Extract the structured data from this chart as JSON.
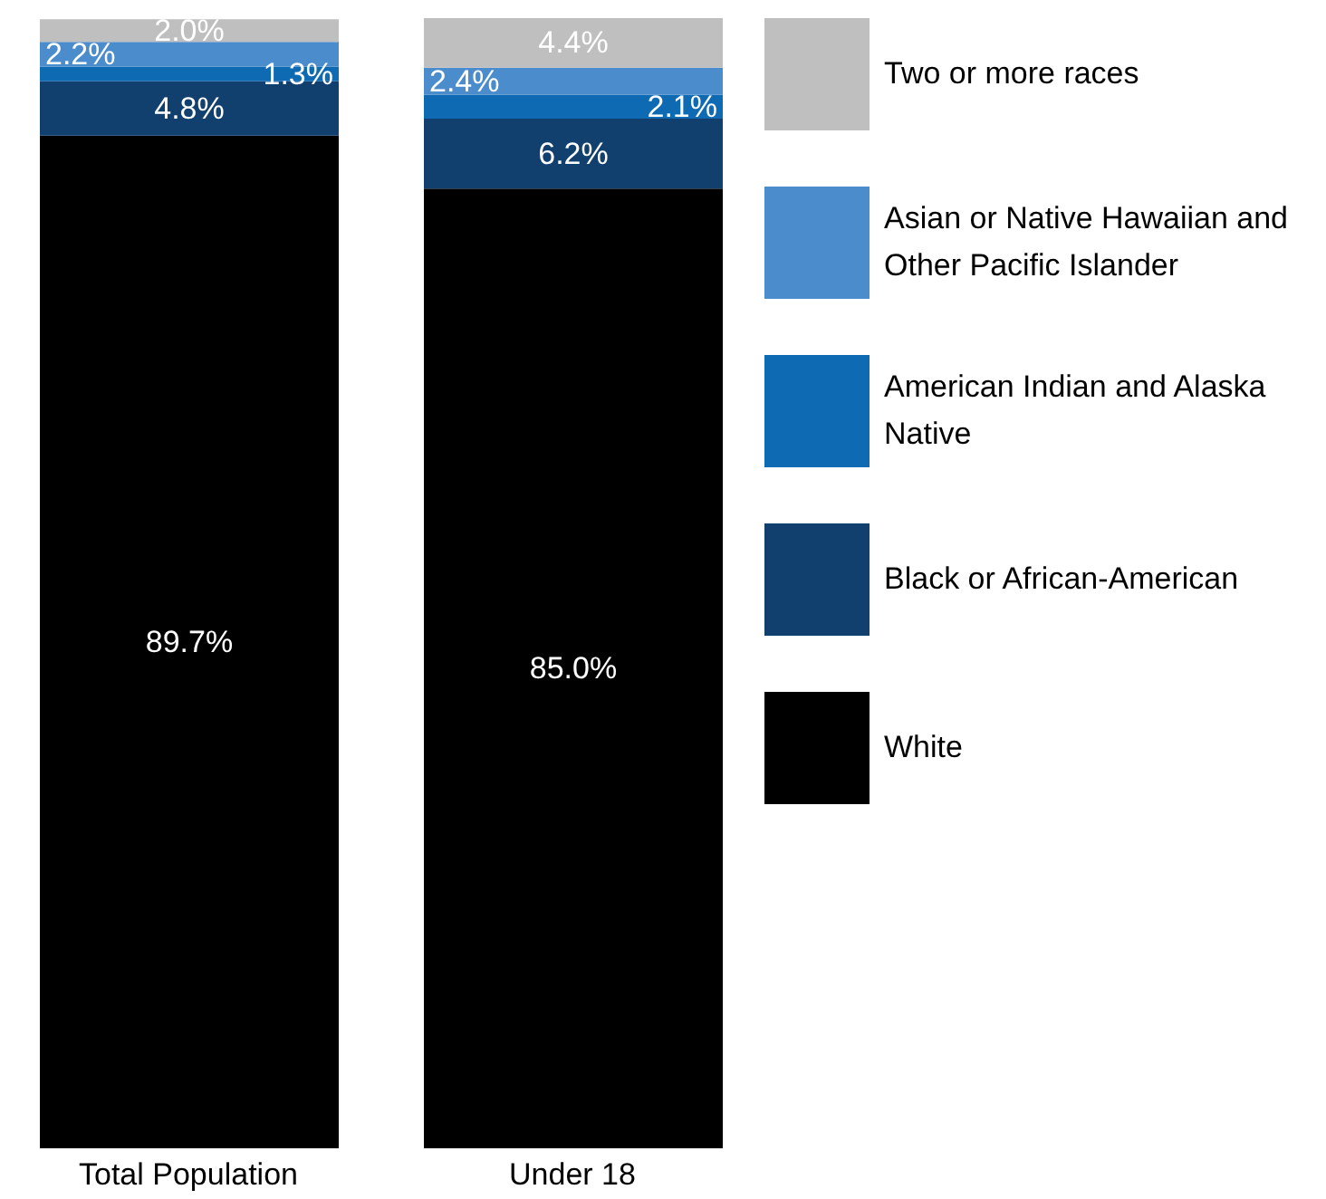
{
  "chart_data": {
    "type": "bar",
    "stacked": true,
    "legend": "right",
    "categories": [
      "Total Population",
      "Under 18"
    ],
    "series": [
      {
        "name": "White",
        "color": "#000000",
        "values": [
          89.7,
          85.0
        ],
        "value_labels": [
          "89.7%",
          "85.0%"
        ]
      },
      {
        "name": "Black or African-American",
        "color": "#12406e",
        "values": [
          4.8,
          6.2
        ],
        "value_labels": [
          "4.8%",
          "6.2%"
        ]
      },
      {
        "name": "American Indian and Alaska Native",
        "color": "#0f6ab4",
        "values": [
          1.3,
          2.1
        ],
        "value_labels": [
          "1.3%",
          "2.1%"
        ]
      },
      {
        "name": "Asian or Native Hawaiian and Other Pacific Islander",
        "color": "#4a8ccc",
        "values": [
          2.2,
          2.4
        ],
        "value_labels": [
          "2.2%",
          "2.4%"
        ]
      },
      {
        "name": "Two or more races",
        "color": "#bfbfbf",
        "values": [
          2.0,
          4.4
        ],
        "value_labels": [
          "2.0%",
          "4.4%"
        ]
      }
    ]
  }
}
